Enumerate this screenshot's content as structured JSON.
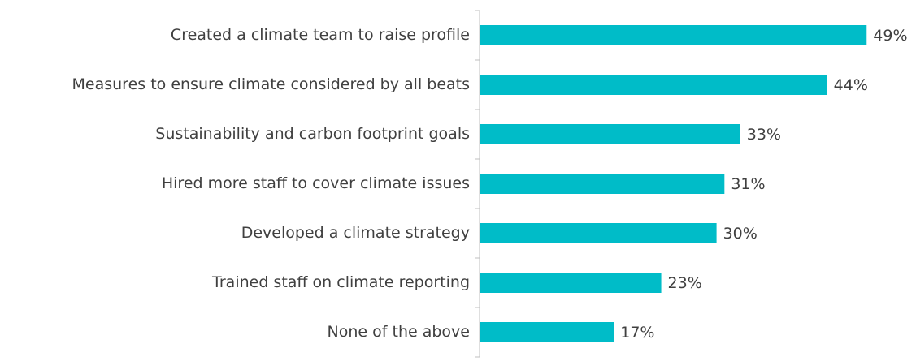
{
  "chart_data": {
    "type": "bar",
    "orientation": "horizontal",
    "categories": [
      "Created a climate team to raise profile",
      "Measures to ensure climate considered by all beats",
      "Sustainability and carbon footprint goals",
      "Hired more staff to cover climate issues",
      "Developed a climate strategy",
      "Trained staff on climate reporting",
      "None of the above"
    ],
    "values": [
      49,
      44,
      33,
      31,
      30,
      23,
      17
    ],
    "value_labels": [
      "49%",
      "44%",
      "33%",
      "31%",
      "30%",
      "23%",
      "17%"
    ],
    "color": "#00bcc8"
  }
}
